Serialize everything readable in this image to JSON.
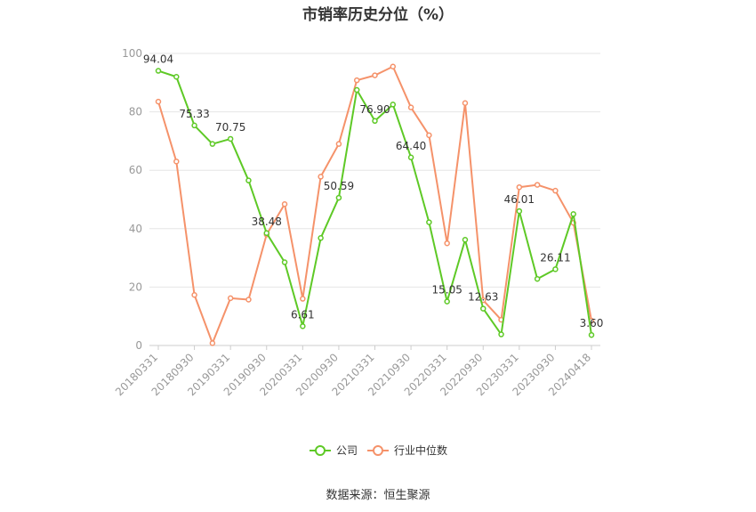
{
  "chart_data": {
    "type": "line",
    "title": "市销率历史分位（%）",
    "ylim": [
      0,
      100
    ],
    "yticks": [
      0,
      20,
      40,
      60,
      80,
      100
    ],
    "x": [
      "20180331",
      "20180630",
      "20180930",
      "20181231",
      "20190331",
      "20190630",
      "20190930",
      "20191231",
      "20200331",
      "20200630",
      "20200930",
      "20201231",
      "20210331",
      "20210630",
      "20210930",
      "20211231",
      "20220331",
      "20220630",
      "20220930",
      "20221231",
      "20230331",
      "20230630",
      "20230930",
      "20231231",
      "20240418"
    ],
    "xtick_labels": [
      "20180331",
      "20180930",
      "20190331",
      "20190930",
      "20200331",
      "20200930",
      "20210331",
      "20210930",
      "20220331",
      "20220930",
      "20230331",
      "20230930",
      "20240418"
    ],
    "xtick_indices": [
      0,
      2,
      4,
      6,
      8,
      10,
      12,
      14,
      16,
      18,
      20,
      22,
      24
    ],
    "series": [
      {
        "name": "公司",
        "color": "#5ec926",
        "values": [
          94.04,
          92.0,
          75.33,
          69.0,
          70.75,
          56.5,
          38.48,
          28.5,
          6.61,
          36.8,
          50.59,
          87.5,
          76.9,
          82.5,
          64.4,
          42.2,
          15.05,
          36.2,
          12.63,
          3.8,
          46.01,
          22.8,
          26.11,
          45.0,
          3.6
        ]
      },
      {
        "name": "行业中位数",
        "color": "#f5926a",
        "values": [
          83.5,
          63.0,
          17.3,
          0.8,
          16.2,
          15.7,
          38.0,
          48.4,
          16.0,
          57.8,
          69.0,
          90.8,
          92.5,
          95.5,
          81.5,
          72.0,
          35.0,
          83.0,
          15.5,
          8.8,
          54.2,
          55.0,
          53.0,
          42.0,
          8.5
        ]
      }
    ],
    "data_labels": [
      {
        "series": 0,
        "index": 0,
        "text": "94.04"
      },
      {
        "series": 0,
        "index": 2,
        "text": "75.33"
      },
      {
        "series": 0,
        "index": 4,
        "text": "70.75"
      },
      {
        "series": 0,
        "index": 6,
        "text": "38.48"
      },
      {
        "series": 0,
        "index": 8,
        "text": "6.61"
      },
      {
        "series": 0,
        "index": 10,
        "text": "50.59"
      },
      {
        "series": 0,
        "index": 12,
        "text": "76.90"
      },
      {
        "series": 0,
        "index": 14,
        "text": "64.40"
      },
      {
        "series": 0,
        "index": 16,
        "text": "15.05"
      },
      {
        "series": 0,
        "index": 18,
        "text": "12.63"
      },
      {
        "series": 0,
        "index": 20,
        "text": "46.01"
      },
      {
        "series": 0,
        "index": 22,
        "text": "26.11"
      },
      {
        "series": 0,
        "index": 24,
        "text": "3.60"
      }
    ],
    "grid": true,
    "legend_position": "bottom-center"
  },
  "source": "数据来源：恒生聚源"
}
